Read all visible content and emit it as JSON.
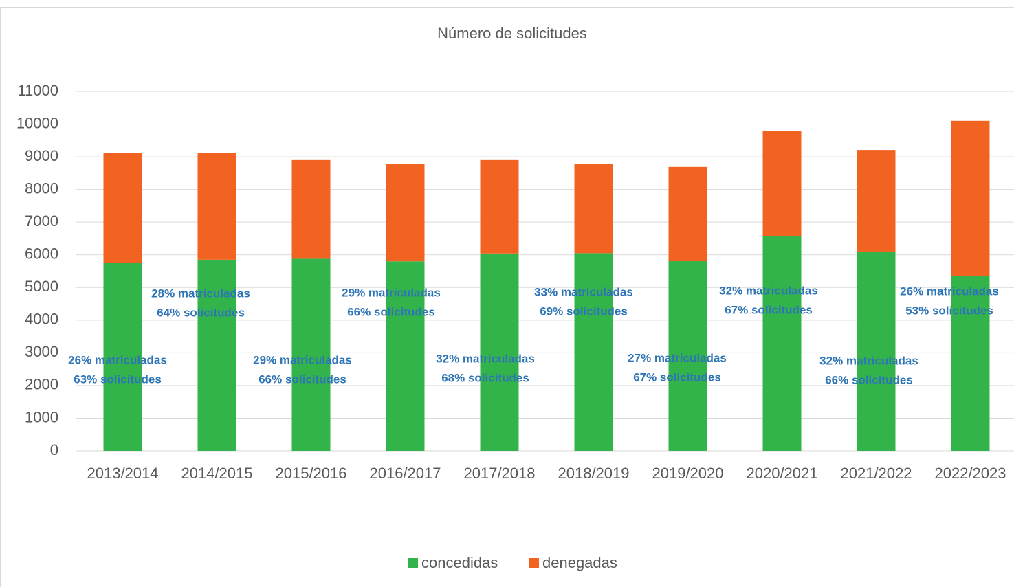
{
  "chart_data": {
    "type": "stacked_bar",
    "title": "Número de solicitudes",
    "categories": [
      "2013/2014",
      "2014/2015",
      "2015/2016",
      "2016/2017",
      "2017/2018",
      "2018/2019",
      "2019/2020",
      "2020/2021",
      "2021/2022",
      "2022/2023"
    ],
    "series": [
      {
        "name": "concedidas",
        "color": "#33b44a",
        "values": [
          5750,
          5850,
          5880,
          5800,
          6040,
          6050,
          5820,
          6580,
          6100,
          5360
        ]
      },
      {
        "name": "denegadas",
        "color": "#f26322",
        "values": [
          3370,
          3270,
          3020,
          2970,
          2860,
          2720,
          2870,
          3220,
          3110,
          4740
        ]
      }
    ],
    "ylim": [
      0,
      11000
    ],
    "yticks": [
      0,
      1000,
      2000,
      3000,
      4000,
      5000,
      6000,
      7000,
      8000,
      9000,
      10000,
      11000
    ],
    "grid": true,
    "legend": "bottom",
    "annotations": [
      [
        "26% matriculadas",
        "63% solicitudes"
      ],
      [
        "28% matriculadas",
        "64% solicitudes"
      ],
      [
        "29% matriculadas",
        "66% solicitudes"
      ],
      [
        "29% matriculadas",
        "66% solicitudes"
      ],
      [
        "32% matriculadas",
        "68% solicitudes"
      ],
      [
        "33% matriculadas",
        "69% solicitudes"
      ],
      [
        "27% matriculadas",
        "67% solicitudes"
      ],
      [
        "32% matriculadas",
        "67% solicitudes"
      ],
      [
        "32% matriculadas",
        "66% solicitudes"
      ],
      [
        "26% matriculadas",
        "53% solicitudes"
      ]
    ]
  }
}
